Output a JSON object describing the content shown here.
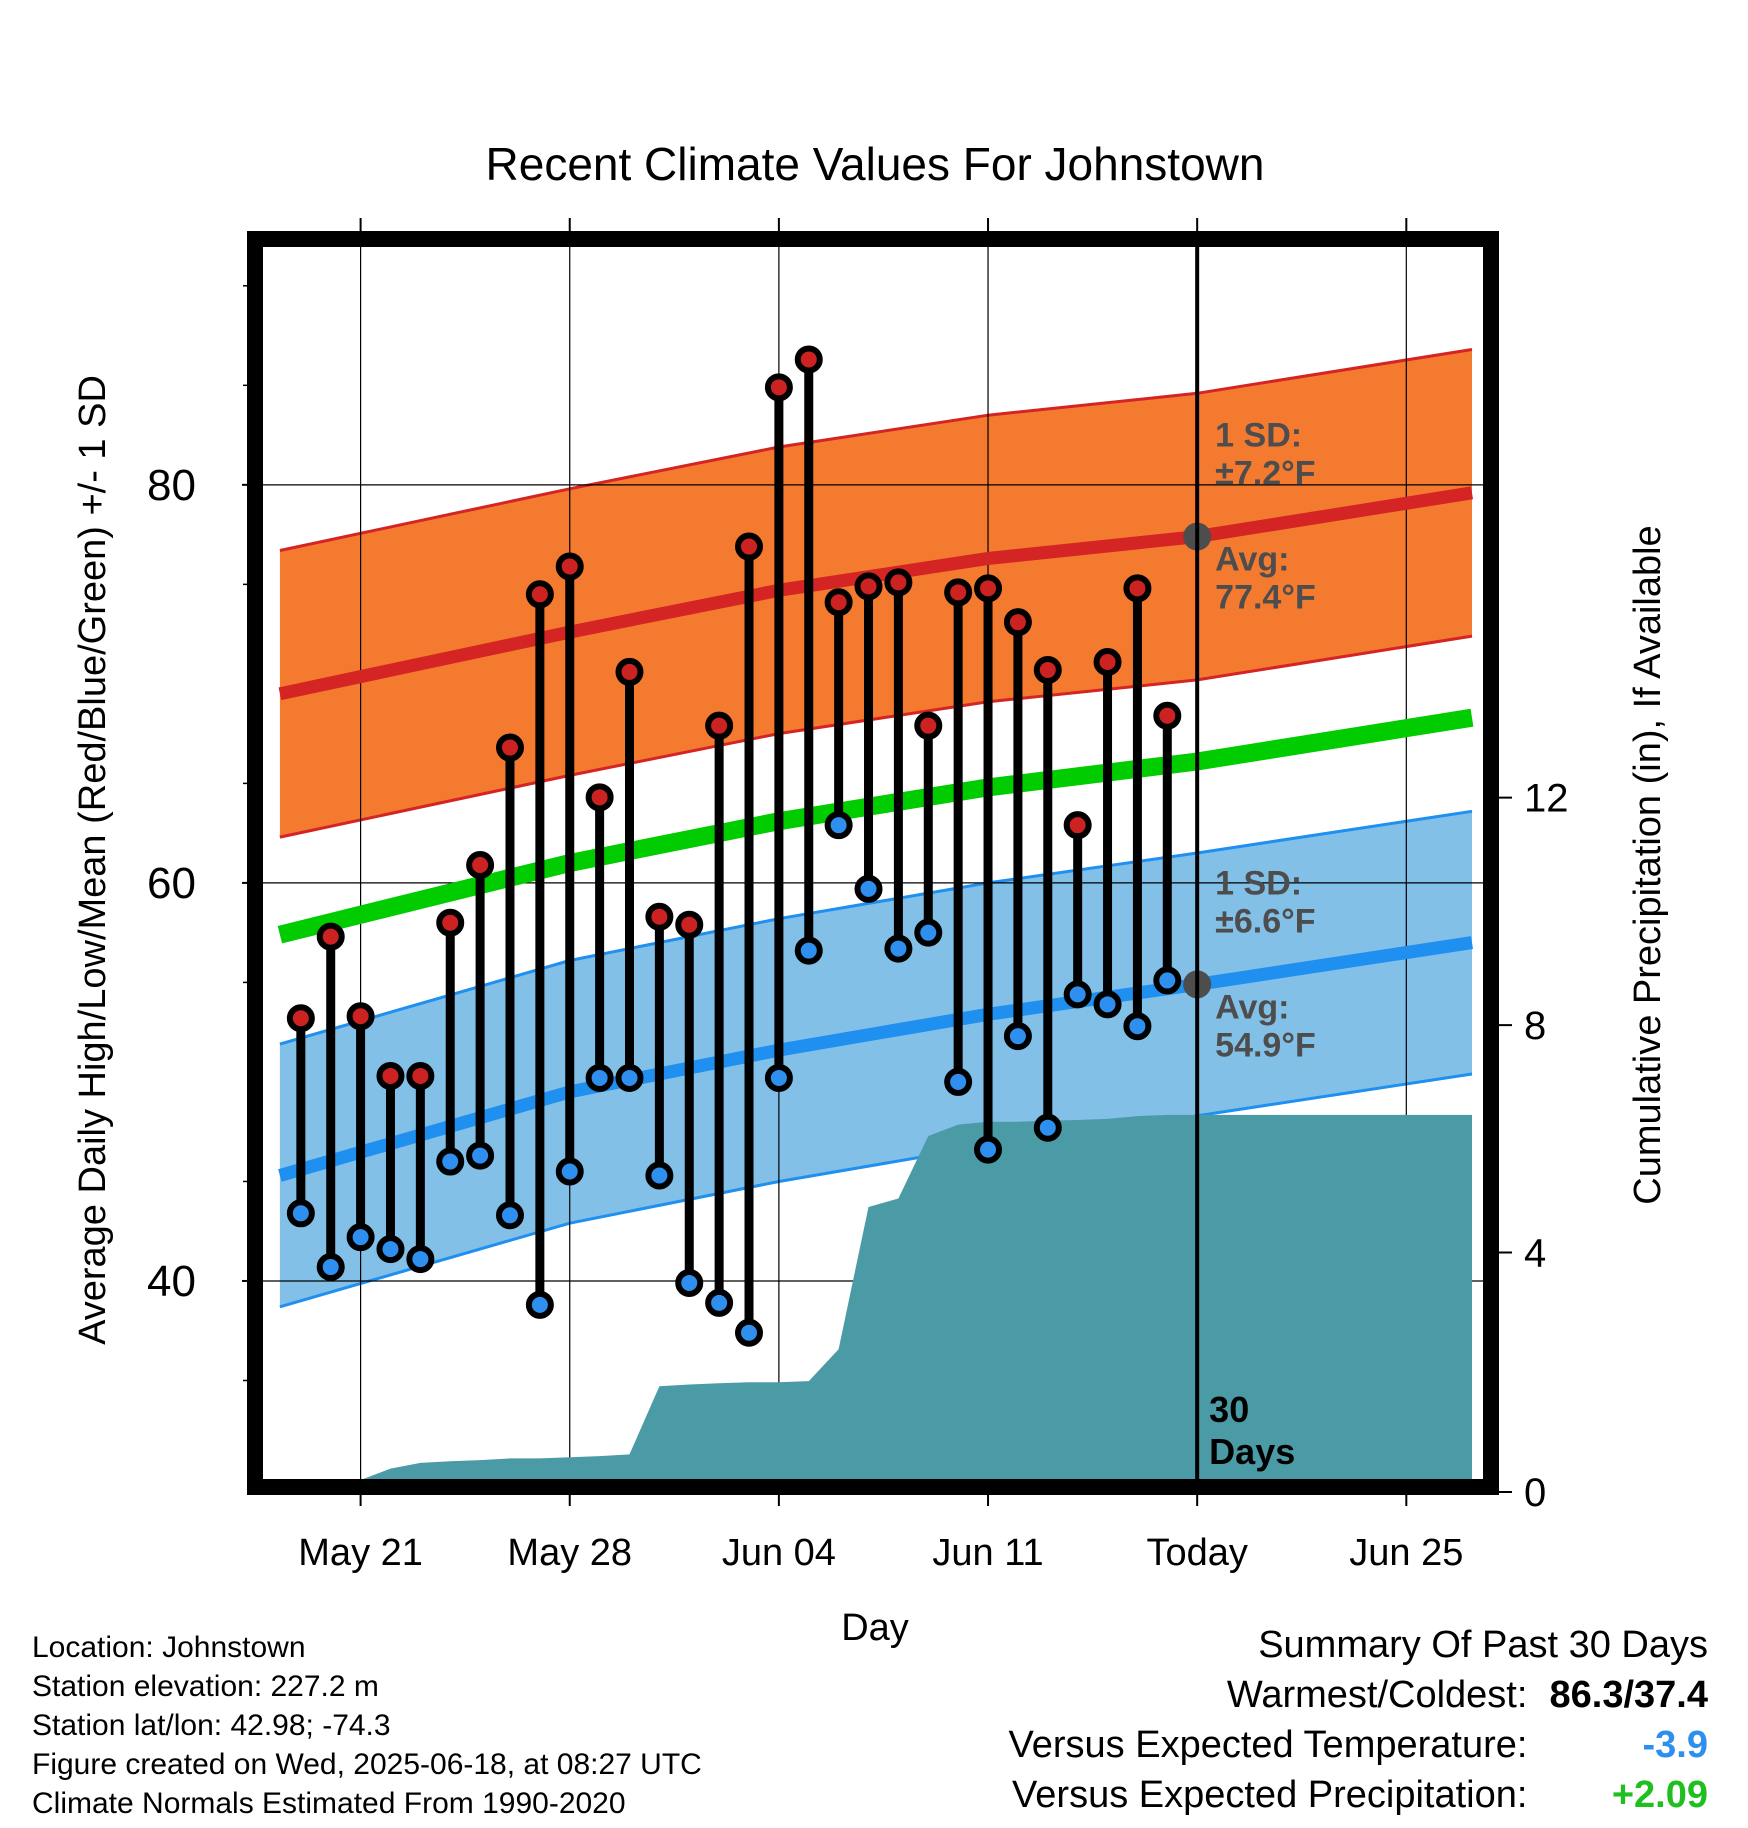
{
  "chart_data": {
    "type": "line",
    "title": "Recent Climate Values For Johnstown",
    "xlabel": "Day",
    "ylabel": "Average Daily High/Low/Mean (Red/Blue/Green) +/- 1 SD",
    "y2label": "Cumulative Precipitation (in), If Available",
    "ylim": [
      30,
      92
    ],
    "y2lim": [
      0,
      21.7
    ],
    "xlim": [
      -3.3,
      37.6
    ],
    "x_ticks": [
      {
        "x": 0,
        "label": "May 21"
      },
      {
        "x": 7,
        "label": "May 28"
      },
      {
        "x": 14,
        "label": "Jun 04"
      },
      {
        "x": 21,
        "label": "Jun 11"
      },
      {
        "x": 28,
        "label": "Today"
      },
      {
        "x": 35,
        "label": "Jun 25"
      }
    ],
    "y_ticks": [
      40,
      60,
      80
    ],
    "y2_ticks": [
      0,
      4,
      8,
      12
    ],
    "grid": true,
    "today_x": 28,
    "today_label": "30\nDays",
    "normals": {
      "x": [
        -2.7,
        7,
        14,
        21,
        28,
        37.2
      ],
      "high_avg": [
        69.5,
        72.6,
        74.7,
        76.3,
        77.4,
        79.6
      ],
      "high_sd": 7.2,
      "low_avg": [
        45.3,
        49.5,
        51.6,
        53.4,
        54.9,
        57.0
      ],
      "low_sd": 6.6,
      "mean_avg": [
        57.4,
        61.0,
        63.1,
        64.8,
        66.1,
        68.3
      ]
    },
    "annotations": {
      "high_sd_label": "1 SD:",
      "high_sd_value": "±7.2°F",
      "high_avg_label": "Avg:",
      "high_avg_value": "77.4°F",
      "low_sd_label": "1 SD:",
      "low_sd_value": "±6.6°F",
      "low_avg_label": "Avg:",
      "low_avg_value": "54.9°F"
    },
    "series": [
      {
        "name": "High",
        "x": [
          -2,
          -1,
          0,
          1,
          2,
          3,
          4,
          5,
          6,
          7,
          8,
          9,
          10,
          11,
          12,
          13,
          14,
          15,
          16,
          17,
          18,
          19,
          20,
          21,
          22,
          23,
          24,
          25,
          26,
          27
        ],
        "values": [
          53.2,
          57.3,
          53.3,
          50.3,
          50.3,
          58.0,
          60.9,
          66.8,
          74.5,
          75.9,
          64.3,
          70.6,
          58.3,
          57.9,
          67.9,
          76.9,
          84.9,
          86.3,
          74.1,
          74.9,
          75.1,
          67.9,
          74.6,
          74.8,
          73.1,
          70.7,
          62.9,
          71.1,
          74.8,
          68.4
        ]
      },
      {
        "name": "Low",
        "x": [
          -2,
          -1,
          0,
          1,
          2,
          3,
          4,
          5,
          6,
          7,
          8,
          9,
          10,
          11,
          12,
          13,
          14,
          15,
          16,
          17,
          18,
          19,
          20,
          21,
          22,
          23,
          24,
          25,
          26,
          27
        ],
        "values": [
          43.4,
          40.7,
          42.2,
          41.6,
          41.1,
          46.0,
          46.3,
          43.3,
          38.8,
          45.5,
          50.2,
          50.2,
          45.3,
          39.9,
          38.9,
          37.4,
          50.2,
          56.6,
          62.9,
          59.7,
          56.7,
          57.5,
          50.0,
          46.6,
          52.3,
          47.7,
          54.4,
          53.9,
          52.8,
          55.1
        ]
      },
      {
        "name": "Precipitation",
        "x": [
          0,
          1,
          2,
          3,
          4,
          5,
          6,
          7,
          8,
          9,
          10,
          11,
          12,
          13,
          14,
          15,
          16,
          17,
          18,
          19,
          20,
          21,
          22,
          23,
          24,
          25,
          26,
          27,
          28,
          37.2
        ],
        "values": [
          0,
          0.2,
          0.3,
          0.33,
          0.35,
          0.38,
          0.38,
          0.4,
          0.42,
          0.45,
          1.65,
          1.68,
          1.7,
          1.72,
          1.72,
          1.74,
          2.3,
          4.8,
          4.95,
          6.05,
          6.25,
          6.3,
          6.3,
          6.32,
          6.33,
          6.35,
          6.4,
          6.42,
          6.42,
          6.42
        ]
      }
    ]
  },
  "info": {
    "location": "Location: Johnstown",
    "elevation": "Station elevation: 227.2 m",
    "latlon": "Station lat/lon: 42.98; -74.3",
    "created": "Figure created on Wed, 2025-06-18, at 08:27 UTC",
    "normals": "Climate Normals Estimated From 1990-2020"
  },
  "summary": {
    "title": "Summary Of Past 30 Days",
    "warmest_label": "Warmest/Coldest:",
    "warmest_value": "86.3/37.4",
    "temp_label": "Versus Expected Temperature:",
    "temp_value": "-3.9",
    "precip_label": "Versus Expected Precipitation:",
    "precip_value": "+2.09"
  },
  "colors": {
    "high_band": "#f47a30",
    "high_line": "#d42423",
    "low_band": "#82c0e8",
    "low_line": "#1f8ff0",
    "mean_line": "#00cc00",
    "precip": "#4a9ba6",
    "high_dot": "#cc2222",
    "low_dot": "#2e8fee",
    "annotation": "#4d4d4d",
    "temp_value": "#2e8fee",
    "precip_value": "#1fbf1f"
  }
}
